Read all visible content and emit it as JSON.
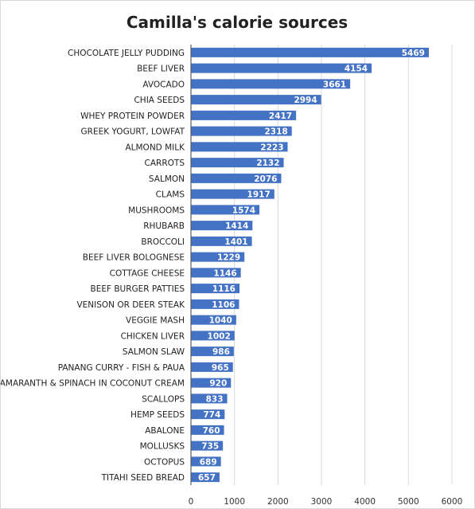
{
  "chart_data": {
    "type": "bar",
    "orientation": "horizontal",
    "title": "Camilla's calorie sources",
    "xlabel": "",
    "ylabel": "",
    "xlim": [
      0,
      6000
    ],
    "ticks": [
      "0",
      "1000",
      "2000",
      "3000",
      "4000",
      "5000",
      "6000"
    ],
    "tick_values": [
      0,
      1000,
      2000,
      3000,
      4000,
      5000,
      6000
    ],
    "grid": true,
    "legend": "none",
    "bar_color": "#4472C4",
    "categories": [
      "CHOCOLATE JELLY PUDDING",
      "BEEF LIVER",
      "AVOCADO",
      "CHIA SEEDS",
      "WHEY PROTEIN POWDER",
      "GREEK YOGURT, LOWFAT",
      "ALMOND MILK",
      "CARROTS",
      "SALMON",
      "CLAMS",
      "MUSHROOMS",
      "RHUBARB",
      "BROCCOLI",
      "BEEF LIVER BOLOGNESE",
      "COTTAGE CHEESE",
      "BEEF BURGER PATTIES",
      "VENISON OR DEER STEAK",
      "VEGGIE MASH",
      "CHICKEN LIVER",
      "SALMON SLAW",
      "PANANG CURRY - FISH & PAUA",
      "AMARANTH & SPINACH IN COCONUT CREAM",
      "SCALLOPS",
      "HEMP SEEDS",
      "ABALONE",
      "MOLLUSKS",
      "OCTOPUS",
      "TITAHI SEED BREAD"
    ],
    "values": [
      5469,
      4154,
      3661,
      2994,
      2417,
      2318,
      2223,
      2132,
      2076,
      1917,
      1574,
      1414,
      1401,
      1229,
      1146,
      1116,
      1106,
      1040,
      1002,
      986,
      965,
      920,
      833,
      774,
      760,
      735,
      689,
      657
    ]
  }
}
